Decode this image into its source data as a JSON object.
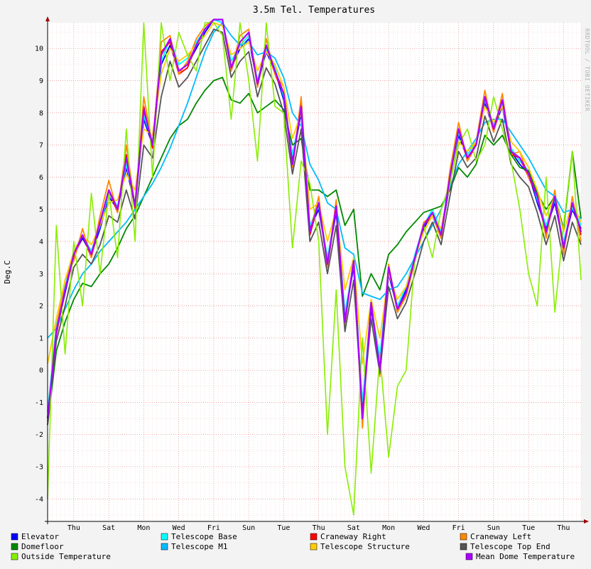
{
  "chart_data": {
    "type": "line",
    "title": "3.5m Tel. Temperatures",
    "ylabel": "Deg.C",
    "xlabel": "",
    "watermark": "RRDTOOL / TOBI OETIKER",
    "ylim": [
      -4.7,
      10.8
    ],
    "yticks": [
      -4,
      -3,
      -2,
      -1,
      0,
      1,
      2,
      3,
      4,
      5,
      6,
      7,
      8,
      9,
      10
    ],
    "x_range": [
      0,
      15.25
    ],
    "grid": "on",
    "legend_position": "bottom",
    "x_ticks": [
      {
        "label": "Thu",
        "x": 0.75
      },
      {
        "label": "Sat",
        "x": 1.75
      },
      {
        "label": "Mon",
        "x": 2.75
      },
      {
        "label": "Wed",
        "x": 3.75
      },
      {
        "label": "Fri",
        "x": 4.75
      },
      {
        "label": "Sun",
        "x": 5.75
      },
      {
        "label": "Tue",
        "x": 6.75
      },
      {
        "label": "Thu",
        "x": 7.75
      },
      {
        "label": "Sat",
        "x": 8.75
      },
      {
        "label": "Mon",
        "x": 9.75
      },
      {
        "label": "Wed",
        "x": 10.75
      },
      {
        "label": "Fri",
        "x": 11.75
      },
      {
        "label": "Sun",
        "x": 12.75
      },
      {
        "label": "Tue",
        "x": 13.75
      },
      {
        "label": "Thu",
        "x": 14.75
      }
    ],
    "x": [
      0,
      0.25,
      0.5,
      0.75,
      1,
      1.25,
      1.5,
      1.75,
      2,
      2.25,
      2.5,
      2.75,
      3,
      3.25,
      3.5,
      3.75,
      4,
      4.25,
      4.5,
      4.75,
      5,
      5.25,
      5.5,
      5.75,
      6,
      6.25,
      6.5,
      6.75,
      7,
      7.25,
      7.5,
      7.75,
      8,
      8.25,
      8.5,
      8.75,
      9,
      9.25,
      9.5,
      9.75,
      10,
      10.25,
      10.5,
      10.75,
      11,
      11.25,
      11.5,
      11.75,
      12,
      12.25,
      12.5,
      12.75,
      13,
      13.25,
      13.5,
      13.75,
      14,
      14.25,
      14.5,
      14.75,
      15,
      15.25
    ],
    "series": [
      {
        "name": "Elevator",
        "color": "#0000ff",
        "values": [
          -1.5,
          1.2,
          2.4,
          3.6,
          4.1,
          3.6,
          4.4,
          5.4,
          5.0,
          6.3,
          5.1,
          7.8,
          7.0,
          9.5,
          10.1,
          9.3,
          9.5,
          10.0,
          10.5,
          10.9,
          10.8,
          9.4,
          10.0,
          10.3,
          8.9,
          9.9,
          9.3,
          8.4,
          6.5,
          8.0,
          4.4,
          5.0,
          3.4,
          4.9,
          1.7,
          3.2,
          -1.2,
          1.9,
          0.2,
          3.0,
          1.9,
          2.5,
          3.5,
          4.4,
          4.9,
          4.2,
          5.8,
          7.3,
          6.6,
          7.0,
          8.3,
          7.5,
          8.2,
          6.8,
          6.4,
          6.1,
          5.2,
          4.4,
          5.2,
          3.9,
          5.0,
          4.4
        ]
      },
      {
        "name": "Telescope Base",
        "color": "#00ffff",
        "values": [
          -1.3,
          1.4,
          2.6,
          3.7,
          4.2,
          3.7,
          4.5,
          5.5,
          5.1,
          6.4,
          5.2,
          7.9,
          7.1,
          9.6,
          10.3,
          9.5,
          9.7,
          10.2,
          10.6,
          10.9,
          10.8,
          9.6,
          10.1,
          10.4,
          9.0,
          10.0,
          9.4,
          8.5,
          6.7,
          8.1,
          4.5,
          5.1,
          3.5,
          5.0,
          1.8,
          3.3,
          -1.0,
          2.0,
          0.4,
          3.1,
          2.0,
          2.6,
          3.6,
          4.5,
          5.0,
          4.3,
          5.9,
          7.4,
          6.7,
          7.1,
          8.4,
          7.6,
          8.3,
          6.9,
          6.5,
          6.2,
          5.3,
          4.5,
          5.3,
          4.0,
          5.1,
          4.5
        ]
      },
      {
        "name": "Craneway Right",
        "color": "#ff0000",
        "values": [
          -1.6,
          1.1,
          2.5,
          3.5,
          4.2,
          3.5,
          4.6,
          5.6,
          4.9,
          6.7,
          5.0,
          8.2,
          6.9,
          9.9,
          10.2,
          9.2,
          9.4,
          10.1,
          10.6,
          10.9,
          10.9,
          9.3,
          10.2,
          10.5,
          8.8,
          10.1,
          9.2,
          8.6,
          6.3,
          8.3,
          4.2,
          5.2,
          3.2,
          5.1,
          1.5,
          3.4,
          -1.6,
          2.1,
          0.0,
          3.2,
          1.8,
          2.4,
          3.4,
          4.5,
          4.8,
          4.1,
          6.0,
          7.5,
          6.5,
          7.0,
          8.5,
          7.4,
          8.4,
          6.7,
          6.6,
          6.0,
          5.4,
          4.2,
          5.4,
          3.7,
          5.2,
          4.2
        ]
      },
      {
        "name": "Craneway Left",
        "color": "#ff8800",
        "values": [
          -1.6,
          1.3,
          2.8,
          3.4,
          4.4,
          3.5,
          4.8,
          5.9,
          4.9,
          7.0,
          5.1,
          8.5,
          7.0,
          10.2,
          10.4,
          9.2,
          9.6,
          10.3,
          10.7,
          10.9,
          10.9,
          9.3,
          10.4,
          10.6,
          8.8,
          10.3,
          9.2,
          8.8,
          6.3,
          8.5,
          4.3,
          5.4,
          3.2,
          5.3,
          1.4,
          3.5,
          -1.8,
          2.2,
          -0.2,
          3.3,
          1.8,
          2.3,
          3.4,
          4.6,
          4.8,
          4.1,
          6.2,
          7.7,
          6.5,
          7.1,
          8.7,
          7.4,
          8.6,
          6.7,
          6.8,
          6.0,
          5.6,
          4.1,
          5.6,
          3.6,
          5.4,
          4.0
        ]
      },
      {
        "name": "Domefloor",
        "color": "#008800",
        "values": [
          -1.7,
          0.6,
          1.5,
          2.2,
          2.7,
          2.6,
          3.0,
          3.3,
          3.8,
          4.4,
          4.8,
          5.4,
          6.0,
          6.6,
          7.2,
          7.6,
          7.8,
          8.3,
          8.7,
          9.0,
          9.1,
          8.4,
          8.3,
          8.6,
          8.0,
          8.2,
          8.4,
          8.1,
          7.0,
          7.2,
          5.6,
          5.6,
          5.4,
          5.6,
          4.5,
          5.0,
          2.3,
          3.0,
          2.5,
          3.6,
          3.9,
          4.3,
          4.6,
          4.9,
          5.0,
          5.1,
          5.6,
          6.3,
          6.0,
          6.4,
          7.3,
          7.0,
          7.3,
          6.7,
          6.3,
          6.2,
          5.5,
          5.0,
          5.4,
          4.4,
          6.8,
          4.7
        ]
      },
      {
        "name": "Telescope M1",
        "color": "#00bbff",
        "values": [
          1.0,
          1.3,
          1.9,
          2.5,
          3.0,
          3.3,
          3.7,
          4.0,
          4.3,
          4.6,
          5.0,
          5.4,
          5.8,
          6.3,
          6.9,
          7.6,
          8.3,
          9.1,
          9.9,
          10.5,
          10.8,
          10.4,
          10.1,
          10.2,
          9.8,
          9.9,
          9.7,
          9.1,
          8.0,
          7.6,
          6.4,
          5.9,
          5.2,
          5.0,
          3.8,
          3.6,
          2.4,
          2.3,
          2.2,
          2.5,
          2.6,
          3.0,
          3.5,
          4.0,
          4.5,
          5.0,
          5.7,
          6.4,
          6.8,
          7.2,
          7.7,
          7.8,
          7.8,
          7.4,
          7.0,
          6.6,
          6.1,
          5.6,
          5.4,
          4.9,
          5.0,
          4.7
        ]
      },
      {
        "name": "Telescope Structure",
        "color": "#ffcc00",
        "values": [
          0.2,
          1.6,
          2.8,
          3.7,
          4.2,
          3.9,
          4.5,
          5.2,
          5.3,
          6.1,
          5.6,
          7.5,
          7.3,
          9.2,
          10.0,
          9.6,
          9.8,
          10.1,
          10.4,
          10.8,
          10.7,
          9.8,
          10.0,
          10.2,
          9.3,
          9.9,
          9.5,
          8.8,
          7.2,
          8.0,
          5.0,
          5.2,
          4.0,
          5.0,
          2.5,
          3.5,
          0.2,
          2.2,
          1.0,
          3.0,
          2.2,
          2.6,
          3.5,
          4.3,
          4.8,
          4.4,
          5.8,
          7.1,
          6.8,
          7.1,
          8.2,
          7.7,
          8.2,
          7.1,
          6.8,
          6.3,
          5.6,
          4.8,
          5.4,
          4.3,
          5.2,
          4.6
        ]
      },
      {
        "name": "Telescope Top End",
        "color": "#555555",
        "values": [
          -1.7,
          0.9,
          2.0,
          3.2,
          3.6,
          3.3,
          3.9,
          4.8,
          4.6,
          5.6,
          4.7,
          7.0,
          6.6,
          8.5,
          9.6,
          8.8,
          9.1,
          9.6,
          10.1,
          10.6,
          10.5,
          9.1,
          9.6,
          9.9,
          8.5,
          9.4,
          8.9,
          8.0,
          6.1,
          7.5,
          4.0,
          4.6,
          3.0,
          4.5,
          1.2,
          2.8,
          -1.3,
          1.6,
          -0.1,
          2.6,
          1.6,
          2.1,
          3.0,
          4.0,
          4.6,
          3.9,
          5.4,
          6.8,
          6.3,
          6.6,
          7.9,
          7.1,
          7.8,
          6.4,
          6.0,
          5.7,
          4.9,
          3.9,
          4.8,
          3.4,
          4.6,
          3.9
        ]
      },
      {
        "name": "Outside Temperature",
        "color": "#88ee00",
        "values": [
          -4.0,
          4.5,
          0.5,
          4.0,
          2.0,
          5.5,
          3.0,
          5.5,
          3.5,
          7.5,
          4.0,
          10.8,
          6.0,
          10.8,
          9.0,
          10.5,
          9.8,
          9.3,
          10.8,
          10.8,
          10.4,
          7.8,
          10.8,
          9.0,
          6.5,
          10.8,
          8.2,
          8.0,
          3.8,
          6.5,
          5.8,
          4.0,
          -2.0,
          2.5,
          -3.0,
          -4.5,
          1.0,
          -3.2,
          0.5,
          -2.7,
          -0.5,
          0.0,
          3.5,
          4.5,
          3.5,
          5.0,
          5.8,
          7.0,
          7.5,
          6.5,
          7.0,
          8.5,
          7.5,
          6.5,
          5.0,
          3.0,
          2.0,
          6.0,
          1.8,
          4.5,
          6.8,
          2.8
        ]
      },
      {
        "name": "Mean Dome Temperature",
        "color": "#aa00ff",
        "values": [
          -1.5,
          1.2,
          2.5,
          3.6,
          4.2,
          3.6,
          4.6,
          5.6,
          5.0,
          6.6,
          5.1,
          8.1,
          7.0,
          9.8,
          10.3,
          9.3,
          9.5,
          10.1,
          10.6,
          10.9,
          10.9,
          9.4,
          10.2,
          10.5,
          8.9,
          10.1,
          9.3,
          8.6,
          6.4,
          8.2,
          4.3,
          5.2,
          3.3,
          5.1,
          1.5,
          3.4,
          -1.5,
          2.1,
          0.0,
          3.2,
          1.9,
          2.4,
          3.5,
          4.5,
          4.9,
          4.2,
          6.0,
          7.5,
          6.6,
          7.0,
          8.5,
          7.5,
          8.4,
          6.8,
          6.6,
          6.1,
          5.4,
          4.3,
          5.4,
          3.8,
          5.2,
          4.3
        ]
      }
    ]
  }
}
